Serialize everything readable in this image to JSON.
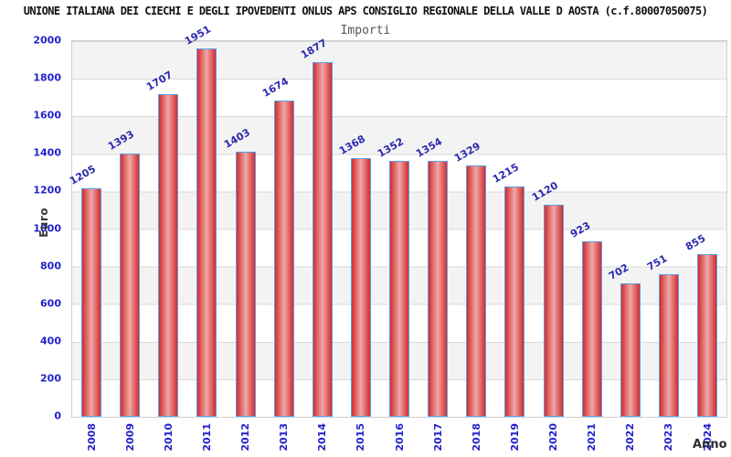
{
  "header": {
    "title": "UNIONE ITALIANA DEI CIECHI E DEGLI IPOVEDENTI ONLUS APS CONSIGLIO REGIONALE DELLA VALLE D AOSTA (c.f.80007050075)",
    "subtitle": "Importi"
  },
  "chart_data": {
    "type": "bar",
    "title": "Importi",
    "categories": [
      "2008",
      "2009",
      "2010",
      "2011",
      "2012",
      "2013",
      "2014",
      "2015",
      "2016",
      "2017",
      "2018",
      "2019",
      "2020",
      "2021",
      "2022",
      "2023",
      "2024"
    ],
    "values": [
      1205,
      1393,
      1707,
      1951,
      1403,
      1674,
      1877,
      1368,
      1352,
      1354,
      1329,
      1215,
      1120,
      923,
      702,
      751,
      855
    ],
    "xlabel": "Anno",
    "ylabel": "Euro",
    "ylim": [
      0,
      2000
    ],
    "yticks": [
      0,
      200,
      400,
      600,
      800,
      1000,
      1200,
      1400,
      1600,
      1800,
      2000
    ],
    "grid": "horizontal gridlines with alternating gray/white bands",
    "legend": "none",
    "colors": {
      "bar_edge": "#d42c2c",
      "bar_center": "#efa8a8",
      "bar_border": "#58a0e8",
      "value_label": "#2a2ab0",
      "tick_label": "#2222cc",
      "axis_title": "#3a3a3a",
      "band_gray": "#f3f3f3",
      "band_white": "#ffffff",
      "gridline": "#d9d9d9"
    }
  }
}
